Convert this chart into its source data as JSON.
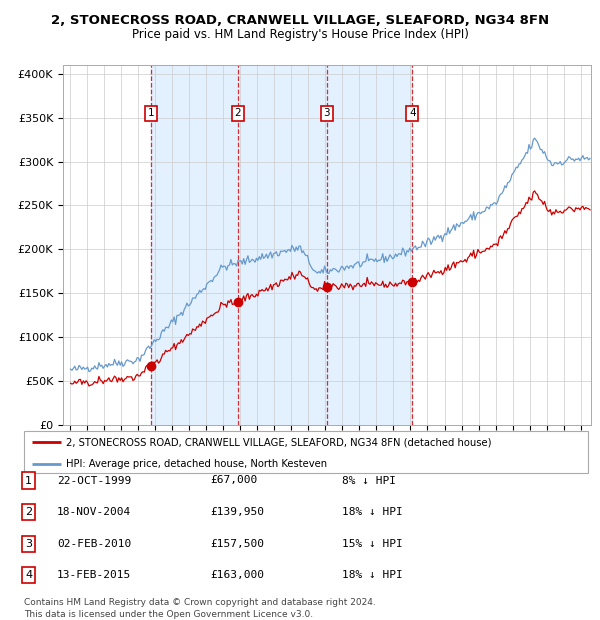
{
  "title1": "2, STONECROSS ROAD, CRANWELL VILLAGE, SLEAFORD, NG34 8FN",
  "title2": "Price paid vs. HM Land Registry's House Price Index (HPI)",
  "hpi_color": "#6699cc",
  "price_color": "#cc0000",
  "bg_shade_color": "#ddeeff",
  "sale_years_f": [
    1999.75,
    2004.8611,
    2010.0833,
    2015.1111
  ],
  "sale_prices": [
    67000,
    139950,
    157500,
    163000
  ],
  "sale_labels": [
    "1",
    "2",
    "3",
    "4"
  ],
  "legend_price_label": "2, STONECROSS ROAD, CRANWELL VILLAGE, SLEAFORD, NG34 8FN (detached house)",
  "legend_hpi_label": "HPI: Average price, detached house, North Kesteven",
  "table_rows": [
    [
      "1",
      "22-OCT-1999",
      "£67,000",
      "8% ↓ HPI"
    ],
    [
      "2",
      "18-NOV-2004",
      "£139,950",
      "18% ↓ HPI"
    ],
    [
      "3",
      "02-FEB-2010",
      "£157,500",
      "15% ↓ HPI"
    ],
    [
      "4",
      "13-FEB-2015",
      "£163,000",
      "18% ↓ HPI"
    ]
  ],
  "footer": "Contains HM Land Registry data © Crown copyright and database right 2024.\nThis data is licensed under the Open Government Licence v3.0.",
  "ylim": [
    0,
    410000
  ],
  "yticks": [
    0,
    50000,
    100000,
    150000,
    200000,
    250000,
    300000,
    350000,
    400000
  ],
  "ytick_labels": [
    "£0",
    "£50K",
    "£100K",
    "£150K",
    "£200K",
    "£250K",
    "£300K",
    "£350K",
    "£400K"
  ],
  "xlim_left": 1994.6,
  "xlim_right": 2025.6
}
